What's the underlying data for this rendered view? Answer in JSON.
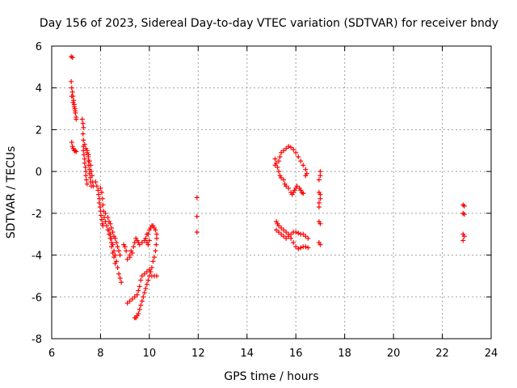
{
  "chart_data": {
    "type": "scatter",
    "title": "Day 156 of 2023, Sidereal Day-to-day VTEC variation (SDTVAR) for receiver bndy",
    "xlabel": "GPS time / hours",
    "ylabel": "SDTVAR / TECUs",
    "xlim": [
      6,
      24
    ],
    "ylim": [
      -8,
      6
    ],
    "xticks": [
      "6",
      "8",
      "10",
      "12",
      "14",
      "16",
      "18",
      "20",
      "22",
      "24"
    ],
    "yticks": [
      "-8",
      "-6",
      "-4",
      "-2",
      "0",
      "2",
      "4",
      "6"
    ],
    "grid": true,
    "marker": "+",
    "color": "#ff0000",
    "series": [
      {
        "name": "SDTVAR",
        "points": [
          [
            6.8,
            5.5
          ],
          [
            6.85,
            5.45
          ],
          [
            6.8,
            4.3
          ],
          [
            6.82,
            4.0
          ],
          [
            6.85,
            3.8
          ],
          [
            6.87,
            3.6
          ],
          [
            6.9,
            3.4
          ],
          [
            6.92,
            3.2
          ],
          [
            6.95,
            3.0
          ],
          [
            6.97,
            2.8
          ],
          [
            7.0,
            2.6
          ],
          [
            6.82,
            3.6
          ],
          [
            6.88,
            3.3
          ],
          [
            6.92,
            3.1
          ],
          [
            6.96,
            2.9
          ],
          [
            7.0,
            2.5
          ],
          [
            6.82,
            1.4
          ],
          [
            6.85,
            1.2
          ],
          [
            6.88,
            1.1
          ],
          [
            6.92,
            1.0
          ],
          [
            6.96,
            1.0
          ],
          [
            7.0,
            0.95
          ],
          [
            7.25,
            2.5
          ],
          [
            7.28,
            2.3
          ],
          [
            7.3,
            2.1
          ],
          [
            7.28,
            1.8
          ],
          [
            7.3,
            1.5
          ],
          [
            7.3,
            1.2
          ],
          [
            7.3,
            1.0
          ],
          [
            7.32,
            0.8
          ],
          [
            7.35,
            0.6
          ],
          [
            7.35,
            0.4
          ],
          [
            7.38,
            0.2
          ],
          [
            7.4,
            0.0
          ],
          [
            7.4,
            -0.2
          ],
          [
            7.42,
            -0.4
          ],
          [
            7.45,
            -0.6
          ],
          [
            7.35,
            1.3
          ],
          [
            7.4,
            1.1
          ],
          [
            7.45,
            0.9
          ],
          [
            7.5,
            0.7
          ],
          [
            7.5,
            0.5
          ],
          [
            7.52,
            0.3
          ],
          [
            7.55,
            0.1
          ],
          [
            7.55,
            -0.1
          ],
          [
            7.58,
            -0.3
          ],
          [
            7.6,
            -0.5
          ],
          [
            7.62,
            -0.7
          ],
          [
            7.45,
            1.0
          ],
          [
            7.5,
            0.8
          ],
          [
            7.55,
            0.5
          ],
          [
            7.6,
            0.3
          ],
          [
            7.62,
            0.0
          ],
          [
            7.65,
            -0.2
          ],
          [
            7.68,
            -0.5
          ],
          [
            7.7,
            -0.7
          ],
          [
            7.8,
            -0.5
          ],
          [
            7.85,
            -0.7
          ],
          [
            7.9,
            -0.9
          ],
          [
            7.92,
            -1.1
          ],
          [
            7.95,
            -1.3
          ],
          [
            7.95,
            -1.5
          ],
          [
            7.98,
            -1.7
          ],
          [
            8.0,
            -1.9
          ],
          [
            8.02,
            -2.1
          ],
          [
            8.05,
            -2.3
          ],
          [
            8.08,
            -2.5
          ],
          [
            8.1,
            -2.6
          ],
          [
            8.0,
            -0.8
          ],
          [
            8.05,
            -1.0
          ],
          [
            8.08,
            -1.3
          ],
          [
            8.1,
            -1.6
          ],
          [
            8.12,
            -1.9
          ],
          [
            8.15,
            -2.2
          ],
          [
            8.2,
            -2.4
          ],
          [
            8.25,
            -2.6
          ],
          [
            8.3,
            -2.8
          ],
          [
            8.35,
            -3.0
          ],
          [
            8.4,
            -3.2
          ],
          [
            8.45,
            -3.4
          ],
          [
            8.2,
            -2.0
          ],
          [
            8.3,
            -2.2
          ],
          [
            8.35,
            -2.4
          ],
          [
            8.4,
            -2.5
          ],
          [
            8.45,
            -2.7
          ],
          [
            8.5,
            -2.9
          ],
          [
            8.55,
            -3.1
          ],
          [
            8.6,
            -3.2
          ],
          [
            8.65,
            -3.4
          ],
          [
            8.7,
            -3.6
          ],
          [
            8.75,
            -3.8
          ],
          [
            8.8,
            -4.0
          ],
          [
            8.35,
            -2.8
          ],
          [
            8.4,
            -3.0
          ],
          [
            8.45,
            -3.2
          ],
          [
            8.5,
            -3.5
          ],
          [
            8.55,
            -3.8
          ],
          [
            8.6,
            -4.0
          ],
          [
            8.65,
            -4.3
          ],
          [
            8.7,
            -4.6
          ],
          [
            8.75,
            -4.9
          ],
          [
            8.8,
            -5.1
          ],
          [
            8.85,
            -5.3
          ],
          [
            8.45,
            -3.6
          ],
          [
            8.5,
            -3.9
          ],
          [
            8.55,
            -4.1
          ],
          [
            8.6,
            -4.4
          ],
          [
            8.95,
            -3.5
          ],
          [
            9.0,
            -3.6
          ],
          [
            9.05,
            -3.8
          ],
          [
            9.1,
            -4.2
          ],
          [
            9.2,
            -4.1
          ],
          [
            9.3,
            -3.9
          ],
          [
            9.35,
            -3.6
          ],
          [
            9.4,
            -3.4
          ],
          [
            9.45,
            -3.2
          ],
          [
            9.5,
            -3.3
          ],
          [
            9.55,
            -3.4
          ],
          [
            9.6,
            -3.5
          ],
          [
            9.7,
            -3.4
          ],
          [
            9.8,
            -3.3
          ],
          [
            9.9,
            -3.4
          ],
          [
            9.95,
            -3.5
          ],
          [
            10.0,
            -3.3
          ],
          [
            9.2,
            -4.0
          ],
          [
            9.25,
            -3.8
          ],
          [
            9.1,
            -6.3
          ],
          [
            9.2,
            -6.2
          ],
          [
            9.3,
            -6.1
          ],
          [
            9.4,
            -6.0
          ],
          [
            9.5,
            -5.9
          ],
          [
            9.55,
            -5.7
          ],
          [
            9.6,
            -5.5
          ],
          [
            9.65,
            -5.2
          ],
          [
            9.7,
            -5.0
          ],
          [
            9.8,
            -4.9
          ],
          [
            9.9,
            -4.8
          ],
          [
            10.0,
            -4.7
          ],
          [
            9.4,
            -7.0
          ],
          [
            9.45,
            -7.0
          ],
          [
            9.5,
            -6.9
          ],
          [
            9.55,
            -6.8
          ],
          [
            9.6,
            -6.6
          ],
          [
            9.65,
            -6.4
          ],
          [
            9.7,
            -6.2
          ],
          [
            9.75,
            -6.0
          ],
          [
            9.8,
            -5.8
          ],
          [
            9.85,
            -5.6
          ],
          [
            9.9,
            -5.4
          ],
          [
            9.95,
            -5.2
          ],
          [
            10.0,
            -5.0
          ],
          [
            9.95,
            -3.0
          ],
          [
            10.0,
            -2.8
          ],
          [
            10.05,
            -2.7
          ],
          [
            10.1,
            -2.6
          ],
          [
            10.15,
            -2.6
          ],
          [
            10.2,
            -2.7
          ],
          [
            10.25,
            -2.8
          ],
          [
            10.3,
            -3.0
          ],
          [
            10.3,
            -3.2
          ],
          [
            10.28,
            -3.5
          ],
          [
            10.25,
            -3.8
          ],
          [
            10.2,
            -4.1
          ],
          [
            10.15,
            -4.3
          ],
          [
            10.1,
            -4.6
          ],
          [
            10.05,
            -4.8
          ],
          [
            10.1,
            -5.0
          ],
          [
            10.2,
            -5.0
          ],
          [
            10.3,
            -5.0
          ],
          [
            9.85,
            -3.2
          ],
          [
            9.9,
            -3.0
          ],
          [
            11.95,
            -1.25
          ],
          [
            11.95,
            -2.15
          ],
          [
            11.95,
            -2.9
          ],
          [
            15.15,
            0.6
          ],
          [
            15.2,
            0.4
          ],
          [
            15.25,
            0.2
          ],
          [
            15.15,
            0.3
          ],
          [
            15.3,
            0.5
          ],
          [
            15.35,
            0.7
          ],
          [
            15.4,
            0.9
          ],
          [
            15.5,
            1.0
          ],
          [
            15.6,
            1.1
          ],
          [
            15.7,
            1.2
          ],
          [
            15.8,
            1.15
          ],
          [
            15.9,
            1.05
          ],
          [
            16.0,
            0.9
          ],
          [
            16.1,
            0.7
          ],
          [
            16.2,
            0.5
          ],
          [
            16.3,
            0.3
          ],
          [
            16.4,
            0.1
          ],
          [
            16.45,
            -0.1
          ],
          [
            16.4,
            -0.2
          ],
          [
            15.3,
            0.0
          ],
          [
            15.35,
            -0.2
          ],
          [
            15.4,
            -0.3
          ],
          [
            15.5,
            -0.4
          ],
          [
            15.55,
            -0.6
          ],
          [
            15.6,
            -0.7
          ],
          [
            15.7,
            -0.8
          ],
          [
            15.8,
            -1.0
          ],
          [
            15.85,
            -1.1
          ],
          [
            15.9,
            -1.0
          ],
          [
            15.95,
            -0.9
          ],
          [
            16.0,
            -0.8
          ],
          [
            16.05,
            -0.7
          ],
          [
            16.15,
            -0.8
          ],
          [
            16.2,
            -0.9
          ],
          [
            16.25,
            -1.0
          ],
          [
            16.3,
            -1.05
          ],
          [
            15.2,
            -2.4
          ],
          [
            15.25,
            -2.5
          ],
          [
            15.3,
            -2.6
          ],
          [
            15.4,
            -2.7
          ],
          [
            15.5,
            -2.8
          ],
          [
            15.6,
            -2.9
          ],
          [
            15.7,
            -3.0
          ],
          [
            15.8,
            -3.2
          ],
          [
            15.9,
            -3.4
          ],
          [
            16.0,
            -3.6
          ],
          [
            16.1,
            -3.7
          ],
          [
            16.2,
            -3.65
          ],
          [
            16.3,
            -3.6
          ],
          [
            16.4,
            -3.6
          ],
          [
            16.5,
            -3.65
          ],
          [
            15.2,
            -2.8
          ],
          [
            15.3,
            -2.9
          ],
          [
            15.4,
            -3.0
          ],
          [
            15.5,
            -3.1
          ],
          [
            15.6,
            -3.2
          ],
          [
            15.7,
            -3.1
          ],
          [
            15.8,
            -3.0
          ],
          [
            15.9,
            -2.9
          ],
          [
            16.0,
            -2.9
          ],
          [
            16.1,
            -2.95
          ],
          [
            16.2,
            -3.0
          ],
          [
            16.3,
            -3.0
          ],
          [
            16.4,
            -3.1
          ],
          [
            16.5,
            -3.2
          ],
          [
            17.0,
            0.0
          ],
          [
            17.0,
            -0.2
          ],
          [
            16.95,
            -0.4
          ],
          [
            16.95,
            -1.0
          ],
          [
            17.0,
            -1.1
          ],
          [
            17.0,
            -1.3
          ],
          [
            16.95,
            -1.5
          ],
          [
            16.95,
            -1.7
          ],
          [
            16.95,
            -2.4
          ],
          [
            17.0,
            -2.5
          ],
          [
            16.95,
            -3.4
          ],
          [
            17.0,
            -3.5
          ],
          [
            22.85,
            -1.6
          ],
          [
            22.9,
            -1.65
          ],
          [
            22.85,
            -2.0
          ],
          [
            22.9,
            -2.05
          ],
          [
            22.85,
            -3.0
          ],
          [
            22.9,
            -3.1
          ],
          [
            22.85,
            -3.3
          ]
        ]
      }
    ]
  }
}
